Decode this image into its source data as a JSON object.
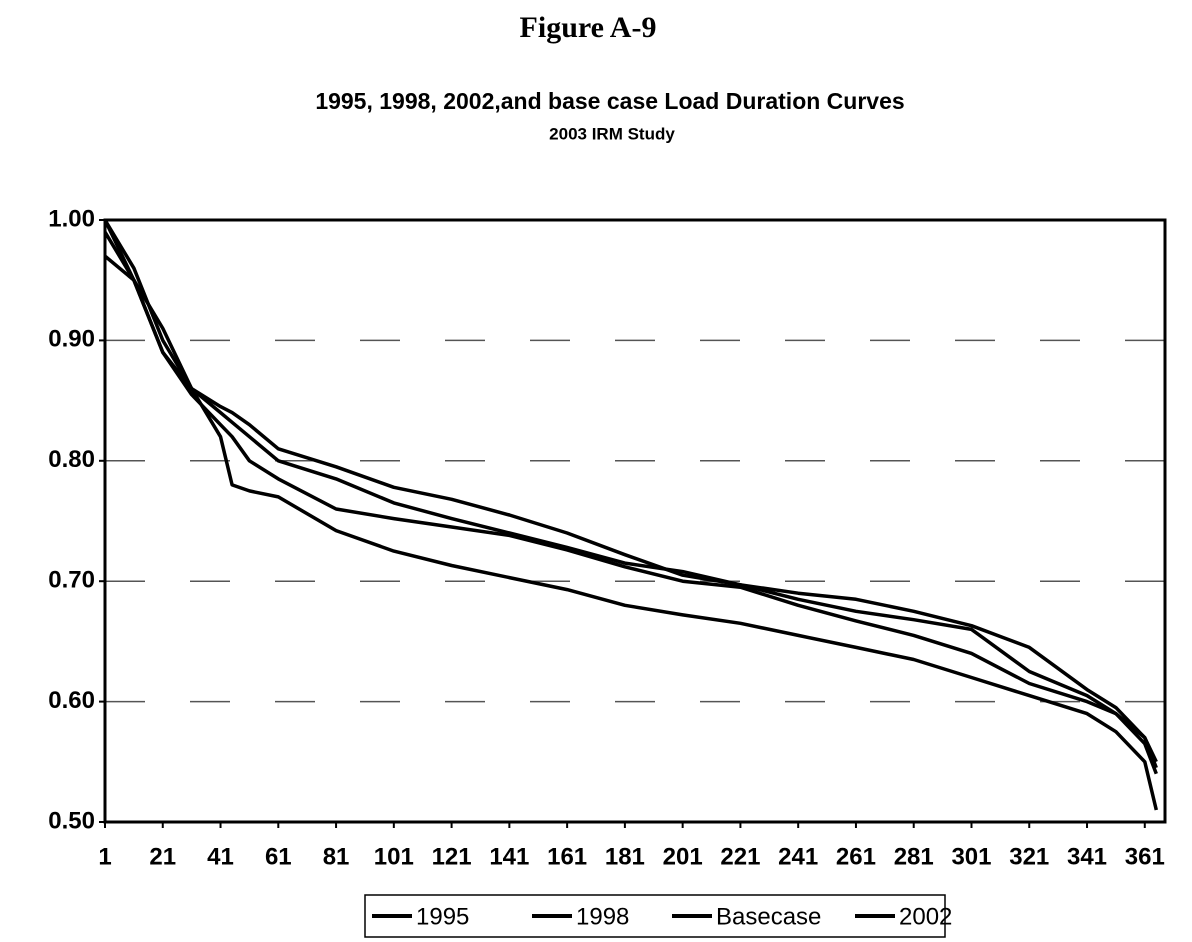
{
  "chart_data": {
    "type": "line",
    "figure_label": "Figure A-9",
    "title": "1995, 1998, 2002,and base case Load Duration Curves",
    "subtitle": "2003 IRM Study",
    "x": [
      1,
      11,
      21,
      31,
      41,
      45,
      51,
      61,
      81,
      101,
      121,
      141,
      161,
      181,
      201,
      221,
      241,
      261,
      281,
      301,
      321,
      341,
      351,
      361,
      365
    ],
    "series": [
      {
        "name": "1995",
        "color": "#000000",
        "values": [
          1.0,
          0.95,
          0.91,
          0.86,
          0.845,
          0.84,
          0.83,
          0.81,
          0.795,
          0.778,
          0.768,
          0.755,
          0.74,
          0.722,
          0.705,
          0.697,
          0.69,
          0.685,
          0.675,
          0.663,
          0.645,
          0.61,
          0.595,
          0.57,
          0.55
        ]
      },
      {
        "name": "1998",
        "color": "#000000",
        "values": [
          1.0,
          0.96,
          0.9,
          0.86,
          0.84,
          0.832,
          0.82,
          0.8,
          0.785,
          0.765,
          0.752,
          0.74,
          0.728,
          0.715,
          0.708,
          0.697,
          0.685,
          0.675,
          0.668,
          0.66,
          0.625,
          0.605,
          0.59,
          0.57,
          0.545
        ]
      },
      {
        "name": "Basecase",
        "color": "#000000",
        "values": [
          0.99,
          0.95,
          0.89,
          0.855,
          0.83,
          0.82,
          0.8,
          0.785,
          0.76,
          0.752,
          0.745,
          0.738,
          0.726,
          0.712,
          0.7,
          0.695,
          0.68,
          0.667,
          0.655,
          0.64,
          0.615,
          0.6,
          0.59,
          0.565,
          0.54
        ]
      },
      {
        "name": "2002",
        "color": "#000000",
        "values": [
          0.97,
          0.95,
          0.89,
          0.86,
          0.82,
          0.78,
          0.775,
          0.77,
          0.742,
          0.725,
          0.713,
          0.703,
          0.693,
          0.68,
          0.672,
          0.665,
          0.655,
          0.645,
          0.635,
          0.62,
          0.605,
          0.59,
          0.575,
          0.55,
          0.51
        ]
      }
    ],
    "xlim": [
      1,
      368
    ],
    "xticks": [
      1,
      21,
      41,
      61,
      81,
      101,
      121,
      141,
      161,
      181,
      201,
      221,
      241,
      261,
      281,
      301,
      321,
      341,
      361
    ],
    "ylim": [
      0.5,
      1
    ],
    "yticks": [
      {
        "value": 0.5,
        "label": "0.50"
      },
      {
        "value": 0.6,
        "label": "0.60"
      },
      {
        "value": 0.7,
        "label": "0.70"
      },
      {
        "value": 0.8,
        "label": "0.80"
      },
      {
        "value": 0.9,
        "label": "0.90"
      },
      {
        "value": 1,
        "label": "1.00"
      }
    ],
    "grid": true,
    "legend": "bottom"
  }
}
